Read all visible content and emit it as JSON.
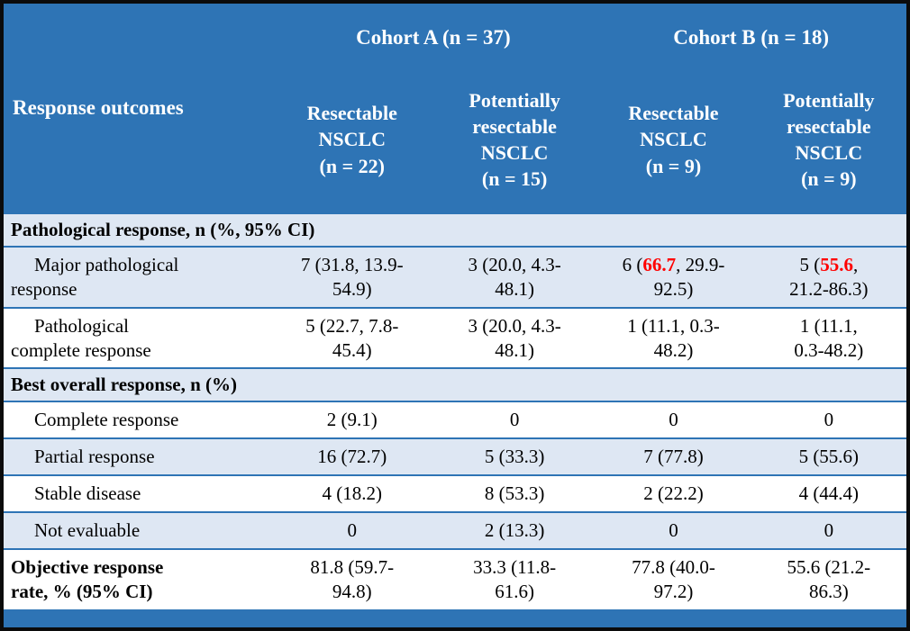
{
  "colors": {
    "header_bg": "#2E74B5",
    "row_shade": "#DEE7F3",
    "row_white": "#FFFFFF",
    "border_blue": "#2E74B5",
    "outer_border": "#000000",
    "header_text": "#FFFFFF",
    "body_text": "#000000",
    "highlight_red": "#FF0000"
  },
  "table": {
    "header": {
      "row_label": "Response outcomes",
      "groups": [
        {
          "label": "Cohort A (n = 37)"
        },
        {
          "label": "Cohort B (n = 18)"
        }
      ],
      "columns": [
        "Resectable\nNSCLC\n(n = 22)",
        "Potentially\nresectable\nNSCLC\n(n = 15)",
        "Resectable\nNSCLC\n(n = 9)",
        "Potentially\nresectable\nNSCLC\n(n = 9)"
      ]
    },
    "rows": [
      {
        "type": "section",
        "label": "Pathological response, n (%, 95% CI)"
      },
      {
        "type": "data",
        "label": "Major pathological\nresponse",
        "values": [
          "7 (31.8, 13.9-\n54.9)",
          "3 (20.0, 4.3-\n48.1)",
          {
            "pre": "6 (",
            "red": "66.7",
            "post": ", 29.9-\n92.5)"
          },
          {
            "pre": "5 (",
            "red": "55.6",
            "post": ",\n21.2-86.3)"
          }
        ]
      },
      {
        "type": "data",
        "label": "Pathological\ncomplete response",
        "values": [
          "5 (22.7, 7.8-\n45.4)",
          "3 (20.0, 4.3-\n48.1)",
          "1 (11.1, 0.3-\n48.2)",
          "1 (11.1,\n0.3-48.2)"
        ]
      },
      {
        "type": "section",
        "label": "Best overall response, n (%)"
      },
      {
        "type": "data",
        "label": "Complete response",
        "values": [
          "2 (9.1)",
          "0",
          "0",
          "0"
        ]
      },
      {
        "type": "data",
        "label": "Partial response",
        "values": [
          "16 (72.7)",
          "5 (33.3)",
          "7 (77.8)",
          "5 (55.6)"
        ]
      },
      {
        "type": "data",
        "label": "Stable disease",
        "values": [
          "4 (18.2)",
          "8 (53.3)",
          "2 (22.2)",
          "4 (44.4)"
        ]
      },
      {
        "type": "data",
        "label": "Not evaluable",
        "values": [
          "0",
          "2 (13.3)",
          "0",
          "0"
        ]
      },
      {
        "type": "data",
        "label": "Objective response\nrate, % (95% CI)",
        "values": [
          "81.8 (59.7-\n94.8)",
          "33.3 (11.8-\n61.6)",
          "77.8 (40.0-\n97.2)",
          "55.6 (21.2-\n86.3)"
        ]
      }
    ]
  }
}
